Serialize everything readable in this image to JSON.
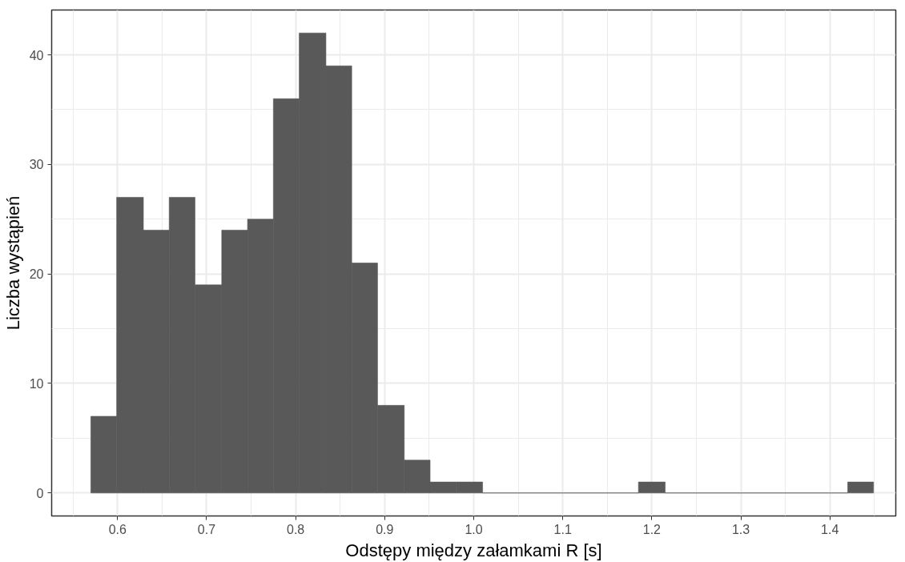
{
  "chart_data": {
    "type": "histogram",
    "xlabel": "Odstępy między załamkami R [s]",
    "ylabel": "Liczba wystąpień",
    "bins": [
      0.57,
      0.599,
      0.629,
      0.658,
      0.687,
      0.717,
      0.746,
      0.775,
      0.804,
      0.834,
      0.863,
      0.892,
      0.922,
      0.951,
      0.98,
      1.01,
      1.185,
      1.215,
      1.42,
      1.449
    ],
    "values": [
      7,
      27,
      24,
      27,
      19,
      24,
      25,
      36,
      42,
      39,
      21,
      8,
      3,
      1,
      1,
      0,
      1,
      0,
      1
    ],
    "color": "#595959",
    "xlim": [
      0.526,
      1.474
    ],
    "ylim": [
      -2.1,
      44.1
    ],
    "xticks": [
      0.6,
      0.7,
      0.8,
      0.9,
      {
        "value": 1.0,
        "label": "1.0"
      },
      1.1,
      1.2,
      1.3,
      1.4
    ],
    "yticks": [
      0,
      10,
      20,
      30,
      40
    ],
    "grid": true
  }
}
